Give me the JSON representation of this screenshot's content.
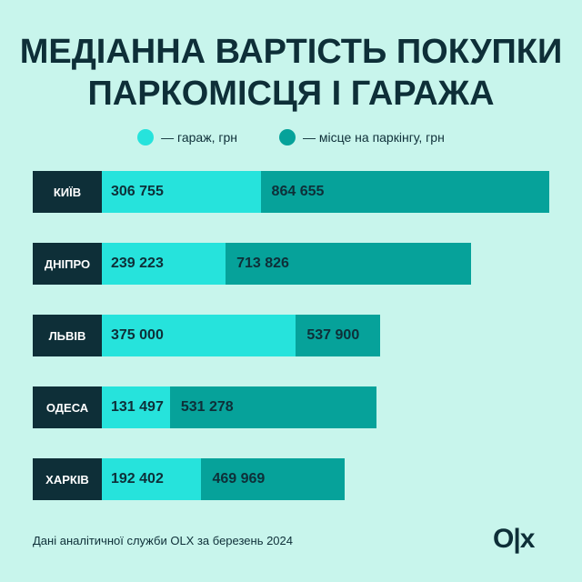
{
  "title_line1": "МЕДІАННА ВАРТІСТЬ ПОКУПКИ",
  "title_line2": "ПАРКОМІСЦЯ І ГАРАЖА",
  "footer": "Дані аналітичної служби OLX за березень 2024",
  "logo": "OLX",
  "colors": {
    "garage": "#26e3dc",
    "parking": "#06a29a",
    "label_bg": "#0e2f38",
    "background": "#c8f5ec"
  },
  "chart_data": {
    "type": "bar",
    "stacked_overlay": true,
    "categories": [
      "КИЇВ",
      "ДНІПРО",
      "ЛЬВІВ",
      "ОДЕСА",
      "ХАРКІВ"
    ],
    "series": [
      {
        "name": "— гараж, грн",
        "values": [
          306755,
          239223,
          375000,
          131497,
          192402
        ],
        "labels": [
          "306 755",
          "239 223",
          "375 000",
          "131 497",
          "192 402"
        ]
      },
      {
        "name": "— місце на паркінгу, грн",
        "values": [
          864655,
          713826,
          537900,
          531278,
          469969
        ],
        "labels": [
          "864 655",
          "713 826",
          "537 900",
          "531 278",
          "469 969"
        ]
      }
    ]
  }
}
